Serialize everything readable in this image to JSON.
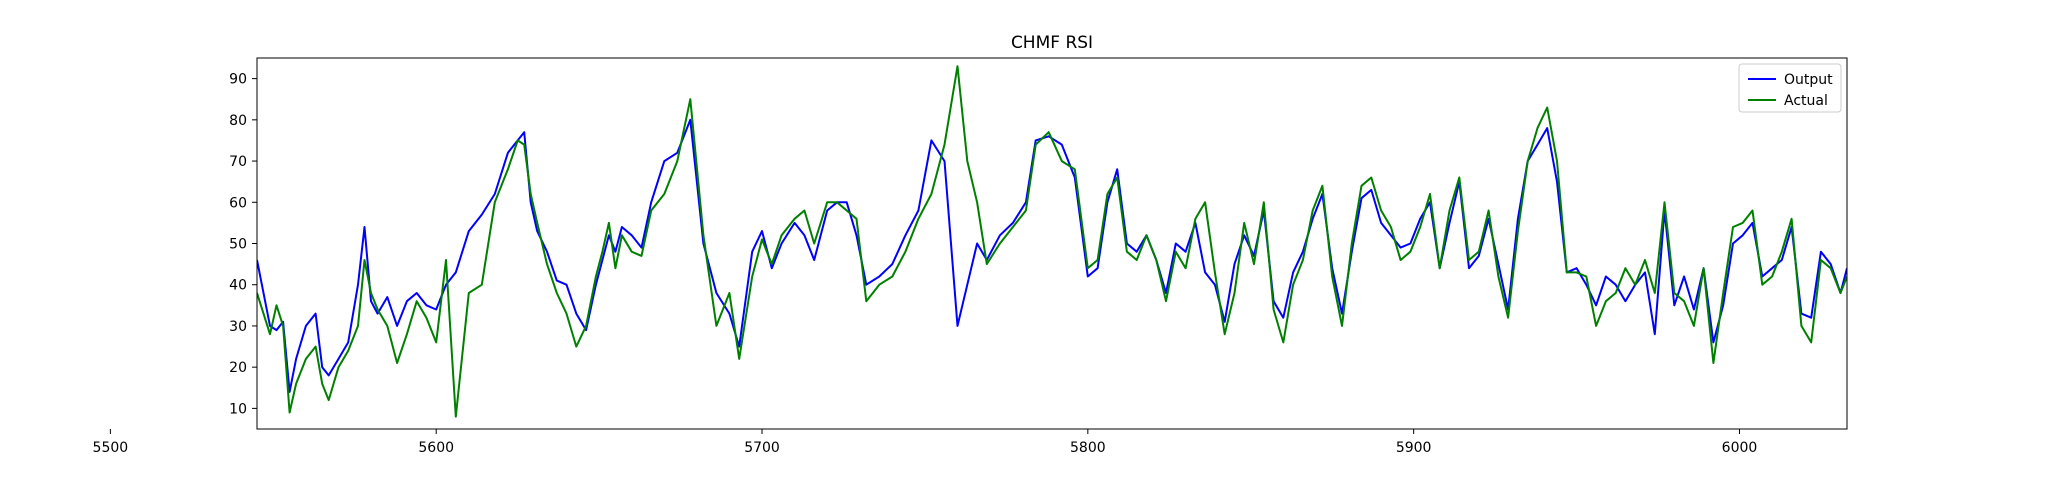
{
  "chart_data": {
    "type": "line",
    "title": "CHMF RSI",
    "xlabel": "",
    "ylabel": "",
    "xlim": [
      5545,
      6033
    ],
    "ylim": [
      5,
      95
    ],
    "xticks": [
      5500,
      5600,
      5700,
      5800,
      5900,
      6000
    ],
    "yticks": [
      10,
      20,
      30,
      40,
      50,
      60,
      70,
      80,
      90
    ],
    "grid": false,
    "legend_position": "upper right",
    "series": [
      {
        "name": "Output",
        "color": "#0000ff",
        "x": [
          5545,
          5549,
          5551,
          5553,
          5555,
          5557,
          5560,
          5563,
          5565,
          5567,
          5570,
          5573,
          5576,
          5578,
          5580,
          5582,
          5585,
          5588,
          5591,
          5594,
          5597,
          5600,
          5603,
          5606,
          5610,
          5614,
          5618,
          5622,
          5625,
          5627,
          5629,
          5631,
          5634,
          5637,
          5640,
          5643,
          5646,
          5649,
          5651,
          5653,
          5655,
          5657,
          5660,
          5663,
          5666,
          5670,
          5674,
          5678,
          5682,
          5686,
          5690,
          5693,
          5697,
          5700,
          5703,
          5706,
          5710,
          5713,
          5716,
          5720,
          5723,
          5726,
          5729,
          5732,
          5736,
          5740,
          5744,
          5748,
          5752,
          5756,
          5760,
          5763,
          5766,
          5769,
          5773,
          5777,
          5781,
          5784,
          5788,
          5792,
          5796,
          5800,
          5803,
          5806,
          5809,
          5812,
          5815,
          5818,
          5821,
          5824,
          5827,
          5830,
          5833,
          5836,
          5839,
          5842,
          5845,
          5848,
          5851,
          5854,
          5857,
          5860,
          5863,
          5866,
          5869,
          5872,
          5875,
          5878,
          5881,
          5884,
          5887,
          5890,
          5893,
          5896,
          5899,
          5902,
          5905,
          5908,
          5911,
          5914,
          5917,
          5920,
          5923,
          5926,
          5929,
          5932,
          5935,
          5938,
          5941,
          5944,
          5947,
          5950,
          5953,
          5956,
          5959,
          5962,
          5965,
          5968,
          5971,
          5974,
          5977,
          5980,
          5983,
          5986,
          5989,
          5992,
          5995,
          5998,
          6001,
          6004,
          6007,
          6010,
          6013,
          6016,
          6019,
          6022,
          6025,
          6028,
          6031,
          6033
        ],
        "y": [
          46,
          30,
          29,
          31,
          14,
          22,
          30,
          33,
          20,
          18,
          22,
          26,
          40,
          54,
          36,
          33,
          37,
          30,
          36,
          38,
          35,
          34,
          40,
          43,
          53,
          57,
          62,
          72,
          75,
          77,
          60,
          53,
          48,
          41,
          40,
          33,
          29,
          40,
          46,
          52,
          48,
          54,
          52,
          49,
          60,
          70,
          72,
          80,
          50,
          38,
          33,
          25,
          48,
          53,
          44,
          50,
          55,
          52,
          46,
          58,
          60,
          60,
          52,
          40,
          42,
          45,
          52,
          58,
          75,
          70,
          30,
          40,
          50,
          46,
          52,
          55,
          60,
          75,
          76,
          74,
          66,
          42,
          44,
          60,
          68,
          50,
          48,
          52,
          46,
          38,
          50,
          48,
          55,
          43,
          40,
          31,
          45,
          52,
          47,
          58,
          36,
          32,
          43,
          48,
          56,
          62,
          44,
          33,
          48,
          61,
          63,
          55,
          52,
          49,
          50,
          56,
          60,
          44,
          55,
          65,
          44,
          47,
          56,
          45,
          34,
          56,
          70,
          74,
          78,
          65,
          43,
          44,
          40,
          35,
          42,
          40,
          36,
          40,
          43,
          28,
          58,
          35,
          42,
          34,
          44,
          26,
          35,
          50,
          52,
          55,
          42,
          44,
          46,
          54,
          33,
          32,
          48,
          45,
          38,
          44
        ]
      },
      {
        "name": "Actual",
        "color": "#008000",
        "x": [
          5545,
          5549,
          5551,
          5553,
          5555,
          5557,
          5560,
          5563,
          5565,
          5567,
          5570,
          5573,
          5576,
          5578,
          5580,
          5582,
          5585,
          5588,
          5591,
          5594,
          5597,
          5600,
          5603,
          5606,
          5610,
          5614,
          5618,
          5622,
          5625,
          5627,
          5629,
          5631,
          5634,
          5637,
          5640,
          5643,
          5646,
          5649,
          5651,
          5653,
          5655,
          5657,
          5660,
          5663,
          5666,
          5670,
          5674,
          5678,
          5682,
          5686,
          5690,
          5693,
          5697,
          5700,
          5703,
          5706,
          5710,
          5713,
          5716,
          5720,
          5723,
          5726,
          5729,
          5732,
          5736,
          5740,
          5744,
          5748,
          5752,
          5756,
          5760,
          5763,
          5766,
          5769,
          5773,
          5777,
          5781,
          5784,
          5788,
          5792,
          5796,
          5800,
          5803,
          5806,
          5809,
          5812,
          5815,
          5818,
          5821,
          5824,
          5827,
          5830,
          5833,
          5836,
          5839,
          5842,
          5845,
          5848,
          5851,
          5854,
          5857,
          5860,
          5863,
          5866,
          5869,
          5872,
          5875,
          5878,
          5881,
          5884,
          5887,
          5890,
          5893,
          5896,
          5899,
          5902,
          5905,
          5908,
          5911,
          5914,
          5917,
          5920,
          5923,
          5926,
          5929,
          5932,
          5935,
          5938,
          5941,
          5944,
          5947,
          5950,
          5953,
          5956,
          5959,
          5962,
          5965,
          5968,
          5971,
          5974,
          5977,
          5980,
          5983,
          5986,
          5989,
          5992,
          5995,
          5998,
          6001,
          6004,
          6007,
          6010,
          6013,
          6016,
          6019,
          6022,
          6025,
          6028,
          6031,
          6033
        ],
        "y": [
          38,
          28,
          35,
          30,
          9,
          16,
          22,
          25,
          16,
          12,
          20,
          24,
          30,
          46,
          38,
          34,
          30,
          21,
          28,
          36,
          32,
          26,
          46,
          8,
          38,
          40,
          60,
          68,
          75,
          74,
          62,
          55,
          45,
          38,
          33,
          25,
          30,
          42,
          48,
          55,
          44,
          52,
          48,
          47,
          58,
          62,
          70,
          85,
          52,
          30,
          38,
          22,
          42,
          51,
          45,
          52,
          56,
          58,
          50,
          60,
          60,
          58,
          56,
          36,
          40,
          42,
          48,
          56,
          62,
          74,
          93,
          70,
          60,
          45,
          50,
          54,
          58,
          74,
          77,
          70,
          68,
          44,
          46,
          62,
          66,
          48,
          46,
          52,
          46,
          36,
          48,
          44,
          56,
          60,
          43,
          28,
          38,
          55,
          45,
          60,
          34,
          26,
          40,
          46,
          58,
          64,
          42,
          30,
          50,
          64,
          66,
          58,
          54,
          46,
          48,
          54,
          62,
          44,
          58,
          66,
          46,
          48,
          58,
          42,
          32,
          53,
          70,
          78,
          83,
          70,
          43,
          43,
          42,
          30,
          36,
          38,
          44,
          40,
          46,
          38,
          60,
          38,
          36,
          30,
          44,
          21,
          38,
          54,
          55,
          58,
          40,
          42,
          48,
          56,
          30,
          26,
          46,
          44,
          38,
          42
        ]
      }
    ]
  }
}
